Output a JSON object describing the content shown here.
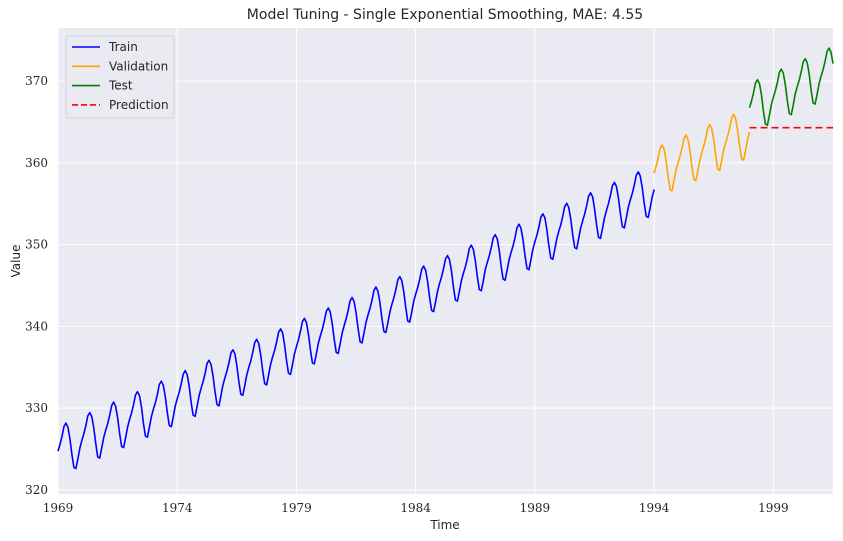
{
  "chart_data": {
    "type": "line",
    "title": "Model Tuning - Single Exponential Smoothing, MAE: 4.55",
    "xlabel": "Time",
    "ylabel": "Value",
    "xlim": [
      1969,
      2001.5
    ],
    "ylim": [
      319.5,
      376.5
    ],
    "xticks": [
      1969,
      1974,
      1979,
      1984,
      1989,
      1994,
      1999
    ],
    "yticks": [
      320,
      330,
      340,
      350,
      360,
      370
    ],
    "grid": true,
    "legend_position": "top-left",
    "seasonal_shape": [
      0.25,
      0.95,
      1.85,
      2.95,
      3.25,
      2.65,
      1.15,
      -0.9,
      -2.6,
      -2.85,
      -1.75,
      -0.55
    ],
    "series": [
      {
        "name": "Train",
        "color": "#0000ff",
        "dash": "",
        "x_start": 1969,
        "x_end": 1994,
        "trend_start": 324.5,
        "trend_end": 356.5
      },
      {
        "name": "Validation",
        "color": "#ffa500",
        "dash": "",
        "x_start": 1994,
        "x_end": 1998,
        "trend_start": 358.5,
        "trend_end": 363.5
      },
      {
        "name": "Test",
        "color": "#008000",
        "dash": "",
        "x_start": 1998,
        "x_end": 2001.5,
        "trend_start": 366.5,
        "trend_end": 371.0
      },
      {
        "name": "Prediction",
        "color": "#ff0000",
        "dash": "7,4",
        "x_start": 1998,
        "x_end": 2001.5,
        "constant": 364.3
      }
    ]
  }
}
